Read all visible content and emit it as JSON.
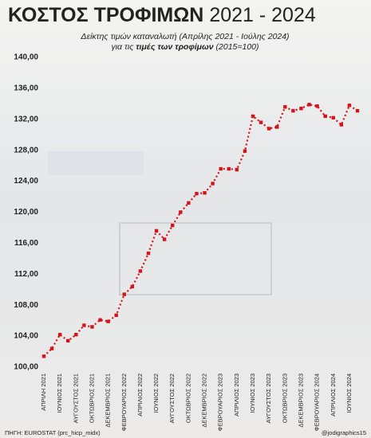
{
  "chart_data": {
    "type": "line",
    "title": "ΚΟΣΤΟΣ ΤΡΟΦΙΜΩΝ",
    "title_years": "2021 - 2024",
    "subtitle": "Δείκτης τιμών καταναλωτή (Απρίλης 2021 - Ιούλης 2024)",
    "subtitle_2": [
      "για τις",
      "τιμές των τροφίμων",
      "(2015=100)"
    ],
    "source": "ΠΗΓΗ: EUROSTAT (prc_hicp_midx)",
    "credit": "@jodigraphics15",
    "color": "#d4141c",
    "categories": [
      "ΑΠΡΙΛΗ 2021",
      null,
      "ΙΟΥΝΙΟΣ 2021",
      null,
      "ΑΥΓΟΥΣΤΟΣ 2021",
      null,
      "ΟΚΤΩΒΡΙΟΣ 2021",
      null,
      "ΔΕΚΕΜΒΡΙΟΣ 2021",
      null,
      "ΦΕΒΡΟΥΑΡΙΟΣ 2022",
      null,
      "ΑΠΡΙΛΙΟΣ 2022",
      null,
      "ΙΟΥΝΙΟΣ 2022",
      null,
      "ΑΥΓΟΥΣΤΟΣ 2022",
      null,
      "ΟΚΤΩΒΡΙΟΣ 2022",
      null,
      "ΔΕΚΕΜΒΡΙΟΣ 2022",
      null,
      "ΦΕΒΡΟΥΑΡΙΟΣ 2023",
      null,
      "ΑΠΡΙΛΙΟΣ 2023",
      null,
      "ΙΟΥΝΙΟΣ 2023",
      null,
      "ΑΥΓΟΥΣΤΟΣ 2023",
      null,
      "ΟΚΤΩΒΡΙΟΣ 2023",
      null,
      "ΔΕΚΕΜΒΡΙΟΣ 2023",
      null,
      "ΦΕΒΡΟΥΑΡΙΟΣ 2024",
      null,
      "ΑΠΡΙΛΙΟΣ 2024",
      null,
      "ΙΟΥΝΙΟΣ 2024",
      null
    ],
    "values": [
      101.4,
      102.4,
      104.2,
      103.4,
      104.2,
      105.4,
      105.2,
      106.1,
      105.9,
      106.7,
      109.4,
      110.4,
      112.4,
      114.7,
      117.6,
      116.5,
      118.3,
      120.0,
      121.2,
      122.4,
      122.5,
      123.7,
      125.6,
      125.6,
      125.5,
      127.9,
      132.4,
      131.6,
      130.8,
      131.0,
      133.6,
      133.1,
      133.4,
      133.9,
      133.7,
      132.4,
      132.2,
      131.3,
      133.8,
      133.1
    ],
    "ylim": [
      100,
      140
    ],
    "yticks": [
      {
        "value": 100,
        "label": "100,00"
      },
      {
        "value": 104,
        "label": "104,00"
      },
      {
        "value": 108,
        "label": "108,00"
      },
      {
        "value": 112,
        "label": "112,00"
      },
      {
        "value": 116,
        "label": "116,00"
      },
      {
        "value": 120,
        "label": "120,00"
      },
      {
        "value": 124,
        "label": "124,00"
      },
      {
        "value": 128,
        "label": "128,00"
      },
      {
        "value": 132,
        "label": "132,00"
      },
      {
        "value": 136,
        "label": "136,00"
      },
      {
        "value": 140,
        "label": "140,00"
      }
    ],
    "grid": false
  }
}
